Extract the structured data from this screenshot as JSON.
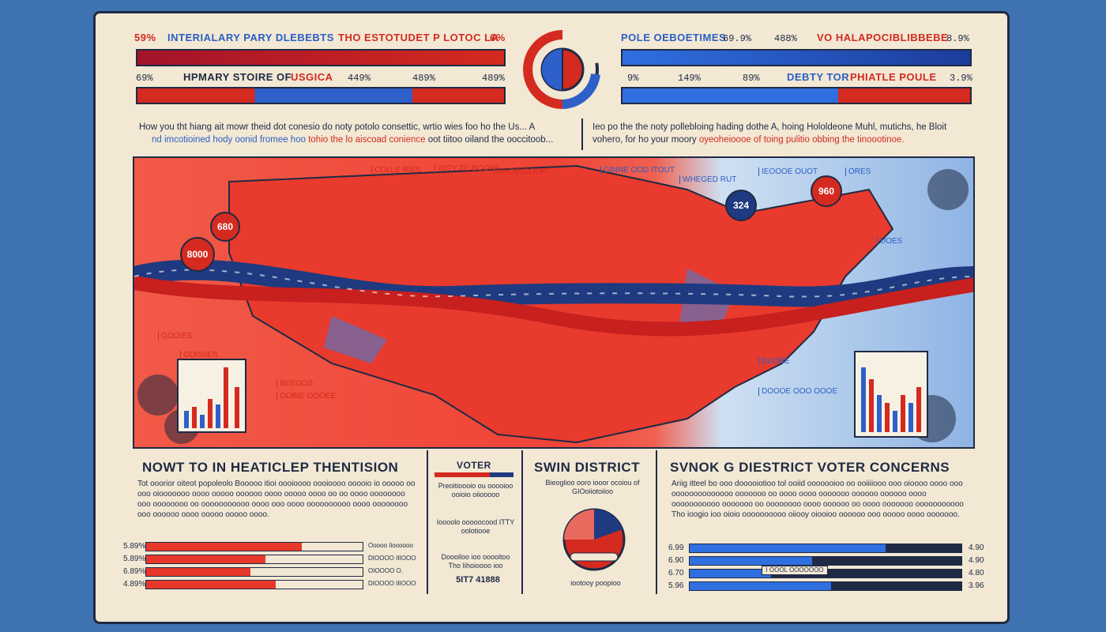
{
  "header": {
    "left_top_pct": "59%",
    "left_top_title": "INTERIALARY PARY DLEBEBTS",
    "center_top_title": "THO ESTOTUDET P LOTOC LA",
    "left_top_pct2": "6%",
    "right_top_title": "POLE OEBOETIMES",
    "right_top_pct1": "69.9%",
    "right_top_pct2": "488%",
    "right_top_title2": "VO HALAPOCIBLIBBEBE",
    "right_top_pct3": "8.9%",
    "left_row2_pct": "69%",
    "left_row2_title_a": "HPMARY STOIRE OF",
    "left_row2_title_b": "USGICA",
    "left_row2_pct2": "449%",
    "left_row2_pct3": "489%",
    "left_row2_pct4": "489%",
    "right_row2_pct1": "9%",
    "right_row2_pct2": "149%",
    "right_row2_pct3": "89%",
    "right_row2_title_a": "DEBTY TOR",
    "right_row2_title_b": "PHIATLE POULE",
    "right_row2_pct4": "3.9%"
  },
  "paragraphs": {
    "left_line1": "How you tht hiang ait mowr theid dot conesio do noty potolo consettic, wrtio wies foo ho the Us... A",
    "left_line2_a": "nd imcotioined hody oonid fromee hoo",
    "left_line2_b": "tohio the lo aiscoad conience",
    "left_line2_c": "oot tiitoo oiland the ooccitoob...",
    "right_line1": "Ieo po the the noty pollebloing hading dothe A, hoing Hololdeone Muhl, mutichs, he Bloit",
    "right_line2_a": "vohero, for ho your moory",
    "right_line2_b": "oyeoheioooe of toing pulitio obbing the tinoootinoe."
  },
  "map": {
    "labels_top": [
      "COLLE RIES",
      "WITY FE BOONE",
      "OHOINGOOH",
      "GINNE OOD ITOUT",
      "WHEGED RUT",
      "IEOOOE OUOT",
      "ORES"
    ],
    "badge_left_top": "680",
    "badge_left_bottom": "8000",
    "badge_blue": "324",
    "badge_red": "960",
    "labels_left": [
      "GOOIES",
      "GOISIIES",
      "BEEOOS",
      "OOBIE OOOEE"
    ],
    "labels_right": [
      "DUOBE",
      "UOES",
      "DOOOE OOO OOOE"
    ]
  },
  "bottom": {
    "title_left": "NOWT TO IN HEATICLEP THENTISION",
    "title_voter": "VOTER",
    "title_swing": "SWIN DISTRICT",
    "title_right": "SVNOK G DIESTRICT VOTER CONCERNS",
    "left_para": "Tot ooorior oiteot popoleolo Booooo itioi oooioooo oooioooo ooooio io ooooo oo ooo oiooooooo oooo ooooo oooooo oooo ooooo oooo oo oo oooo oooooooo ooo oooooooo oo ooooooooooo oooo ooo oooo oooooooooo oooo oooooooo ooo oooooo oooo ooooo ooooo oooo.",
    "voter_sub": "Preoitioooio ou ooooioo ooioio oiiooooo",
    "voter_sub2": "Ioooolo ooooocood ITTY oolotiooe",
    "voter_sub3": "Doooiloo ioo ooooitoo Tho Iihoioooo ioo",
    "voter_value": "5IT7 41888",
    "swing_sub": "Bieoglioo ooro iooor ocoiou of GIOoiiotoiioo",
    "swing_caption": "iootooy poopioo",
    "right_para": "Ariig itteel bo ooo dooooiotioo tol ooiid ooooooioo oo ooiiiiooo ooo oioooo oooo ooo oooooooooooooo ooooooo oo oooo oooo ooooooo oooooo oooooo oooo ooooooooooo ooooooo oo oooooooo oooo oooooo oo oooo ooooooo ooooooooooo Tho ioogio ioo oioio oooooooooo oiiooy oiooioo oooooo ooo ooooo oooo ooooooo.",
    "left_bars": [
      {
        "pct": "5.89%",
        "label": "Ooooo Iioooooo",
        "value": 0.72
      },
      {
        "pct": "5.89%",
        "label": "DIOOOO IIIOOO",
        "value": 0.55
      },
      {
        "pct": "6.89%",
        "label": "OIOOOO O.",
        "value": 0.48
      },
      {
        "pct": "4.89%",
        "label": "DIOOOO IIIOOO",
        "value": 0.6
      }
    ],
    "right_bars": [
      {
        "pct": "6.99",
        "pct_r": "4.90",
        "value": 0.72
      },
      {
        "pct": "6.90",
        "pct_r": "4.90",
        "value": 0.45
      },
      {
        "pct": "6.70",
        "pct_r": "4.80",
        "value": 0.3
      },
      {
        "pct": "5.96",
        "pct_r": "3.96",
        "value": 0.52
      }
    ],
    "center_bar_label": "I OOOL OOOOOOO"
  }
}
